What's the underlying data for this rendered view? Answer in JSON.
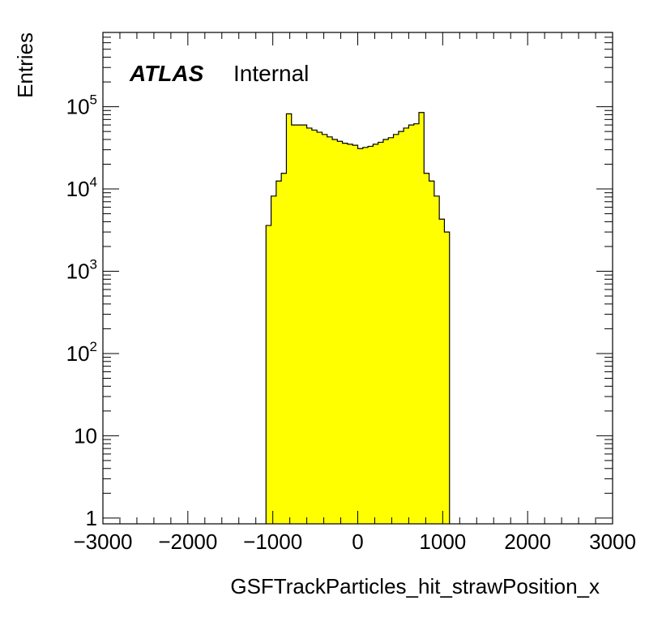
{
  "chart_data": {
    "type": "bar",
    "title": "",
    "xlabel": "GSFTrackParticles_hit_strawPosition_x",
    "ylabel": "Entries",
    "label_atlas": "ATLAS",
    "label_status": "Internal",
    "xlim": [
      -3000,
      3000
    ],
    "ylim": [
      0.85,
      800000
    ],
    "y_scale": "log",
    "grid": false,
    "fill_color": "#ffff00",
    "edge_color": "#000000",
    "x_ticks": [
      "−3000",
      "−2000",
      "−1000",
      "0",
      "1000",
      "2000",
      "3000"
    ],
    "y_ticks": [
      {
        "value": 1,
        "base": "1",
        "exp": ""
      },
      {
        "value": 10,
        "base": "10",
        "exp": ""
      },
      {
        "value": 100,
        "base": "10",
        "exp": "2"
      },
      {
        "value": 1000,
        "base": "10",
        "exp": "3"
      },
      {
        "value": 10000,
        "base": "10",
        "exp": "4"
      },
      {
        "value": 100000,
        "base": "10",
        "exp": "5"
      }
    ],
    "bin_edges": [
      -1080,
      -1020,
      -960,
      -900,
      -840,
      -780,
      -720,
      -660,
      -600,
      -540,
      -480,
      -420,
      -360,
      -300,
      -240,
      -180,
      -120,
      -60,
      0,
      60,
      120,
      180,
      240,
      300,
      360,
      420,
      480,
      540,
      600,
      660,
      720,
      780,
      840,
      900,
      960,
      1020,
      1080
    ],
    "values": [
      3600,
      8200,
      12500,
      15500,
      82000,
      60000,
      60000,
      60000,
      55000,
      52000,
      49000,
      46000,
      43000,
      40000,
      38000,
      36000,
      35000,
      34000,
      31000,
      32000,
      33000,
      35000,
      37000,
      40000,
      42000,
      46000,
      50000,
      55000,
      60000,
      62000,
      85000,
      15500,
      12500,
      8200,
      4300,
      3000
    ]
  }
}
